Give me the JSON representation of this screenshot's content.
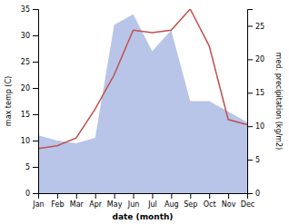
{
  "chart_data": {
    "type": "line",
    "categories": [
      "Jan",
      "Feb",
      "Mar",
      "Apr",
      "May",
      "Jun",
      "Jul",
      "Aug",
      "Sep",
      "Oct",
      "Nov",
      "Dec"
    ],
    "series": [
      {
        "type": "area",
        "color": "#b8c4e8",
        "values": [
          11.0,
          10.0,
          9.5,
          10.5,
          32.0,
          34.0,
          27.0,
          31.0,
          17.5,
          17.5,
          15.5,
          13.5
        ]
      },
      {
        "type": "line",
        "color": "#c0504d",
        "values": [
          8.5,
          9.0,
          10.5,
          16.0,
          22.5,
          31.0,
          30.5,
          31.0,
          35.0,
          28.0,
          14.0,
          13.0
        ]
      }
    ],
    "xlabel": "date (month)",
    "ylabel": "max temp (C)",
    "y2label": "med. precipitation (kg/m2)",
    "ylim": [
      0,
      35
    ],
    "yticks": [
      0,
      5,
      10,
      15,
      20,
      25,
      30,
      35
    ],
    "y2lim": [
      0,
      27.5
    ],
    "y2ticks": [
      0,
      5,
      10,
      15,
      20,
      25
    ],
    "grid": false
  }
}
